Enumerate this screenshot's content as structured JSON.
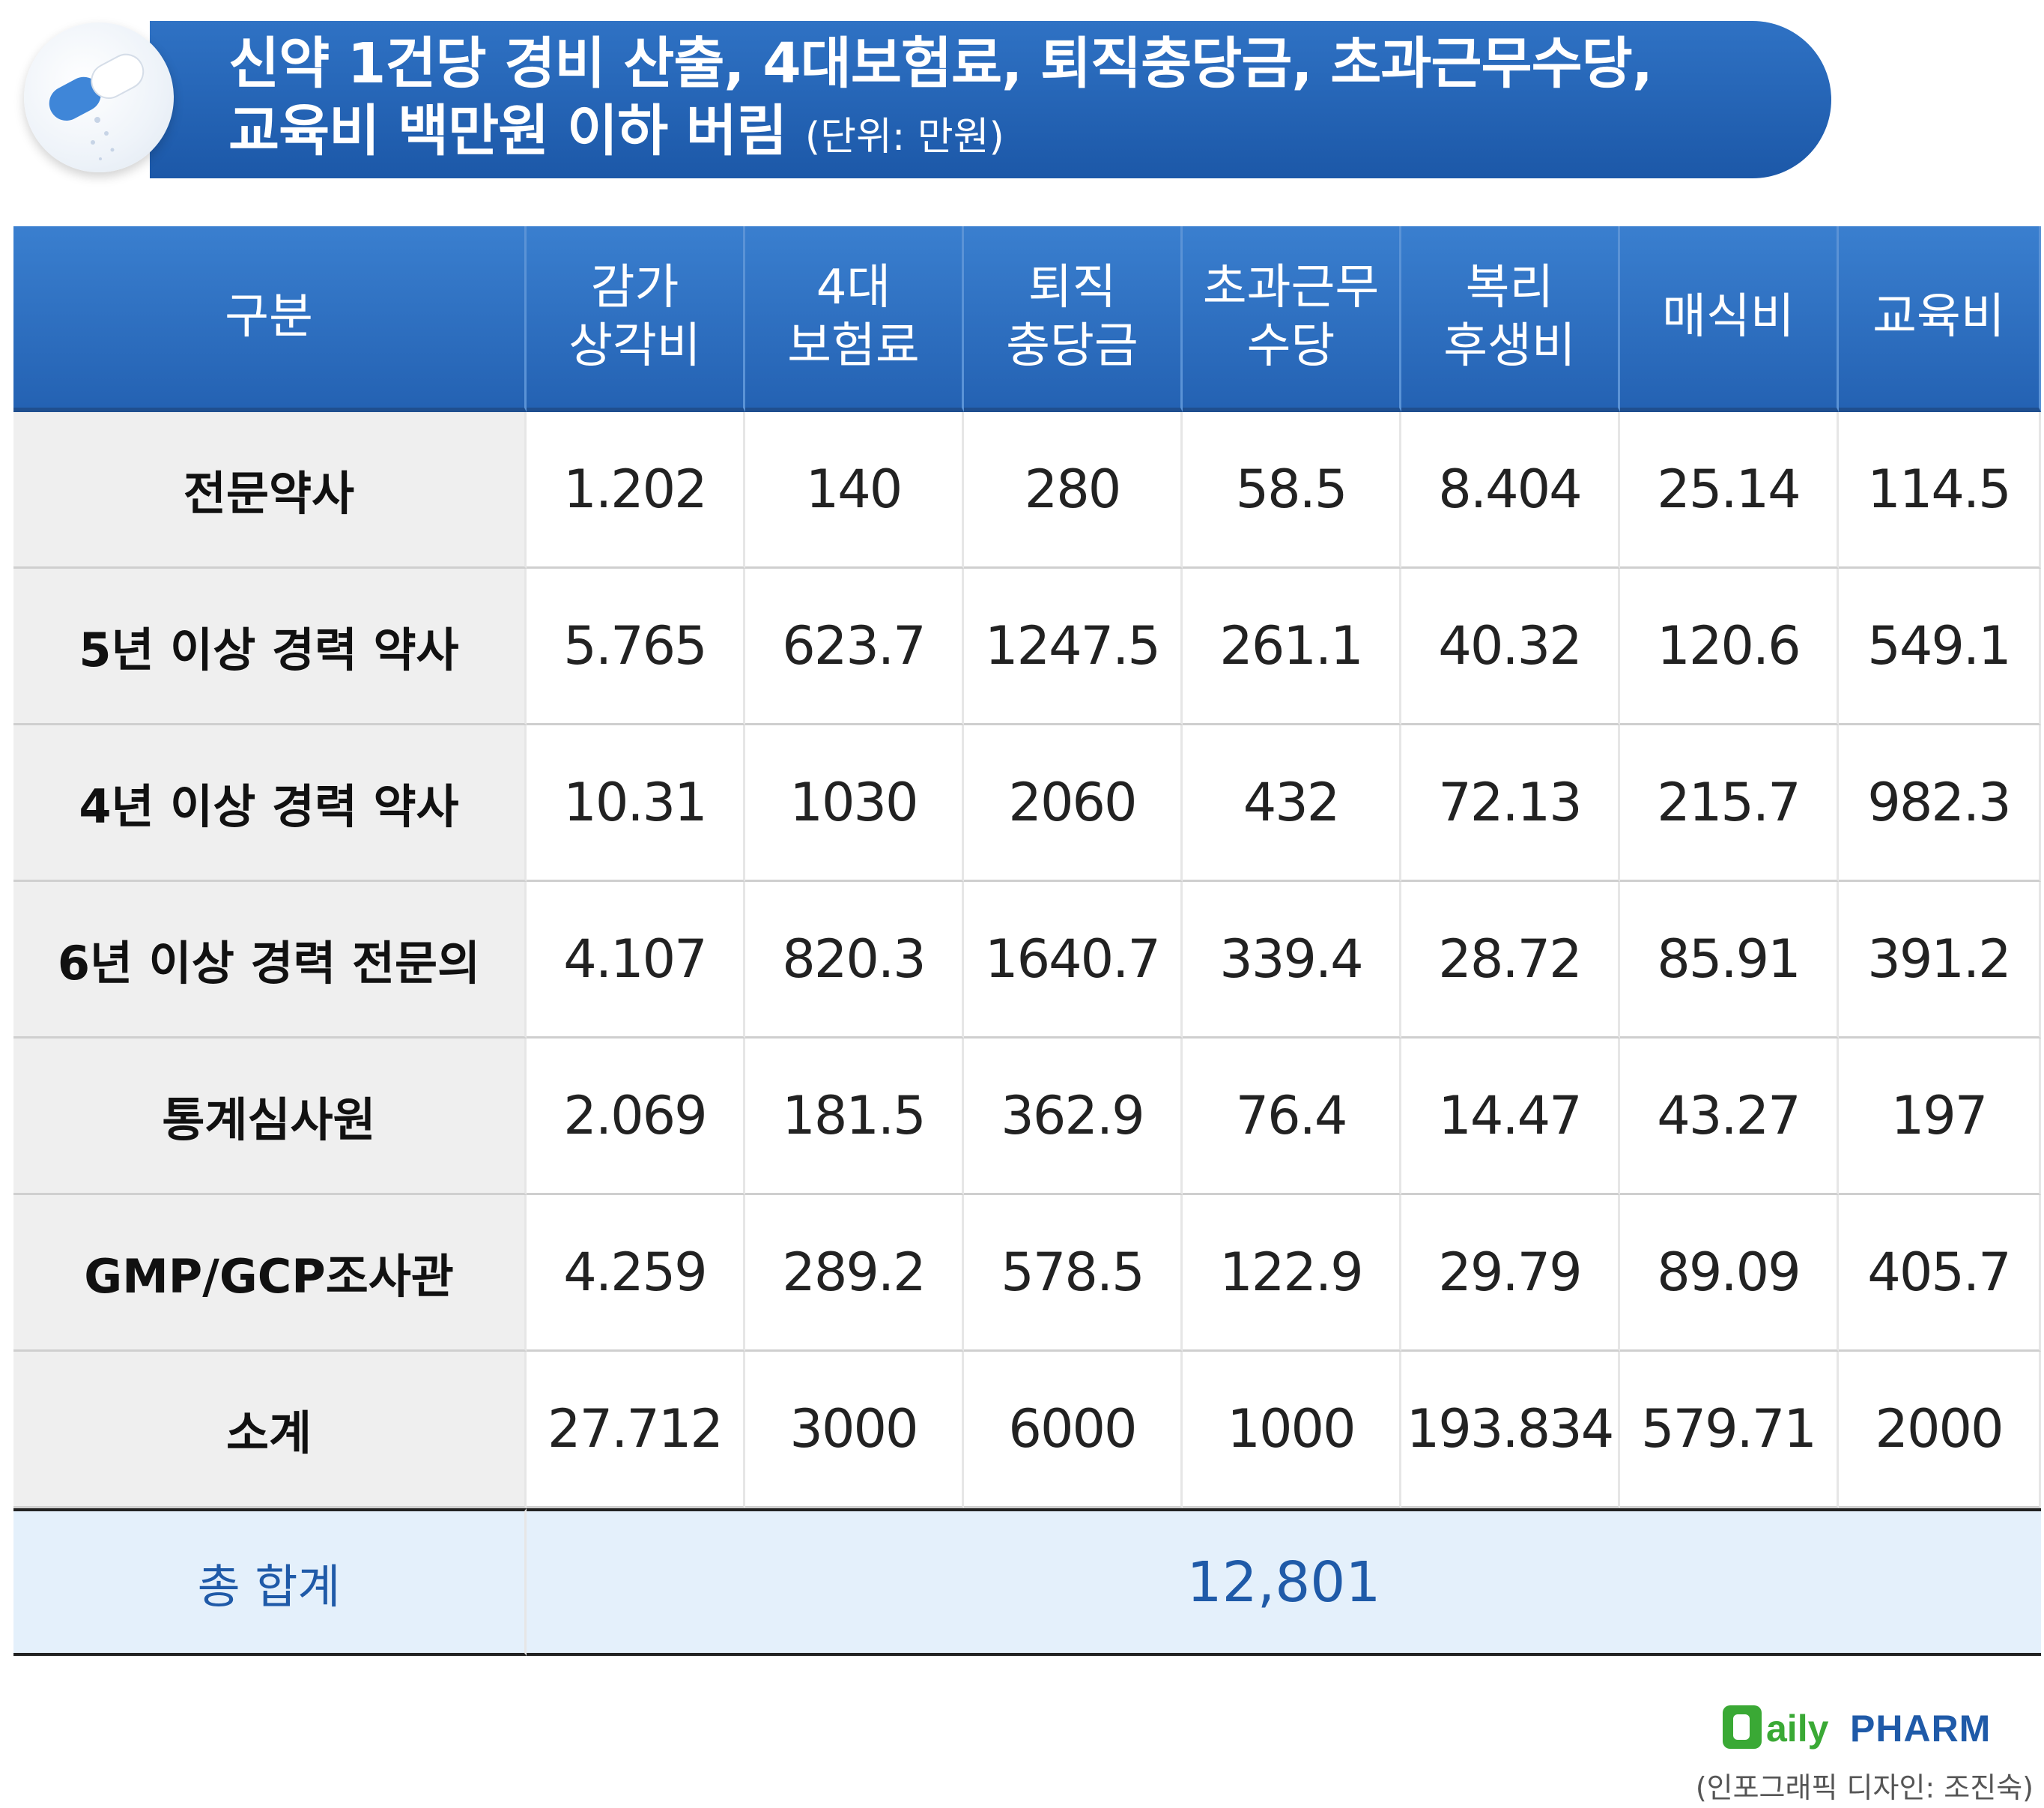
{
  "header": {
    "title_line1": "신약 1건당 경비 산출, 4대보험료,  퇴직충당금, 초과근무수당,",
    "title_line2": "교육비 백만원 이하 버림",
    "unit": "(단위: 만원)"
  },
  "table": {
    "headers": [
      {
        "line1": "구분",
        "line2": ""
      },
      {
        "line1": "감가",
        "line2": "상각비"
      },
      {
        "line1": "4대",
        "line2": "보험료"
      },
      {
        "line1": "퇴직",
        "line2": "충당금"
      },
      {
        "line1": "초과근무",
        "line2": "수당"
      },
      {
        "line1": "복리",
        "line2": "후생비"
      },
      {
        "line1": "매식비",
        "line2": ""
      },
      {
        "line1": "교육비",
        "line2": ""
      }
    ],
    "rows": [
      {
        "label": "전문약사",
        "values": [
          "1.202",
          "140",
          "280",
          "58.5",
          "8.404",
          "25.14",
          "114.5"
        ]
      },
      {
        "label": "5년 이상 경력 약사",
        "values": [
          "5.765",
          "623.7",
          "1247.5",
          "261.1",
          "40.32",
          "120.6",
          "549.1"
        ]
      },
      {
        "label": "4년 이상 경력 약사",
        "values": [
          "10.31",
          "1030",
          "2060",
          "432",
          "72.13",
          "215.7",
          "982.3"
        ]
      },
      {
        "label": "6년 이상 경력 전문의",
        "values": [
          "4.107",
          "820.3",
          "1640.7",
          "339.4",
          "28.72",
          "85.91",
          "391.2"
        ]
      },
      {
        "label": "통계심사원",
        "values": [
          "2.069",
          "181.5",
          "362.9",
          "76.4",
          "14.47",
          "43.27",
          "197"
        ]
      },
      {
        "label": "GMP/GCP조사관",
        "values": [
          "4.259",
          "289.2",
          "578.5",
          "122.9",
          "29.79",
          "89.09",
          "405.7"
        ]
      },
      {
        "label": "소계",
        "values": [
          "27.712",
          "3000",
          "6000",
          "1000",
          "193.834",
          "579.71",
          "2000"
        ]
      }
    ],
    "total_label": "총 합계",
    "total_value": "12,801"
  },
  "footer": {
    "logo_text": "Daily PHARM",
    "credit": "(인포그래픽 디자인: 조진숙)"
  },
  "colors": {
    "header_blue": "#2462b3",
    "row_label_bg": "#efefef",
    "total_bg": "#e4f0fb",
    "total_text": "#1f5aa8",
    "logo_green": "#3aa935"
  }
}
